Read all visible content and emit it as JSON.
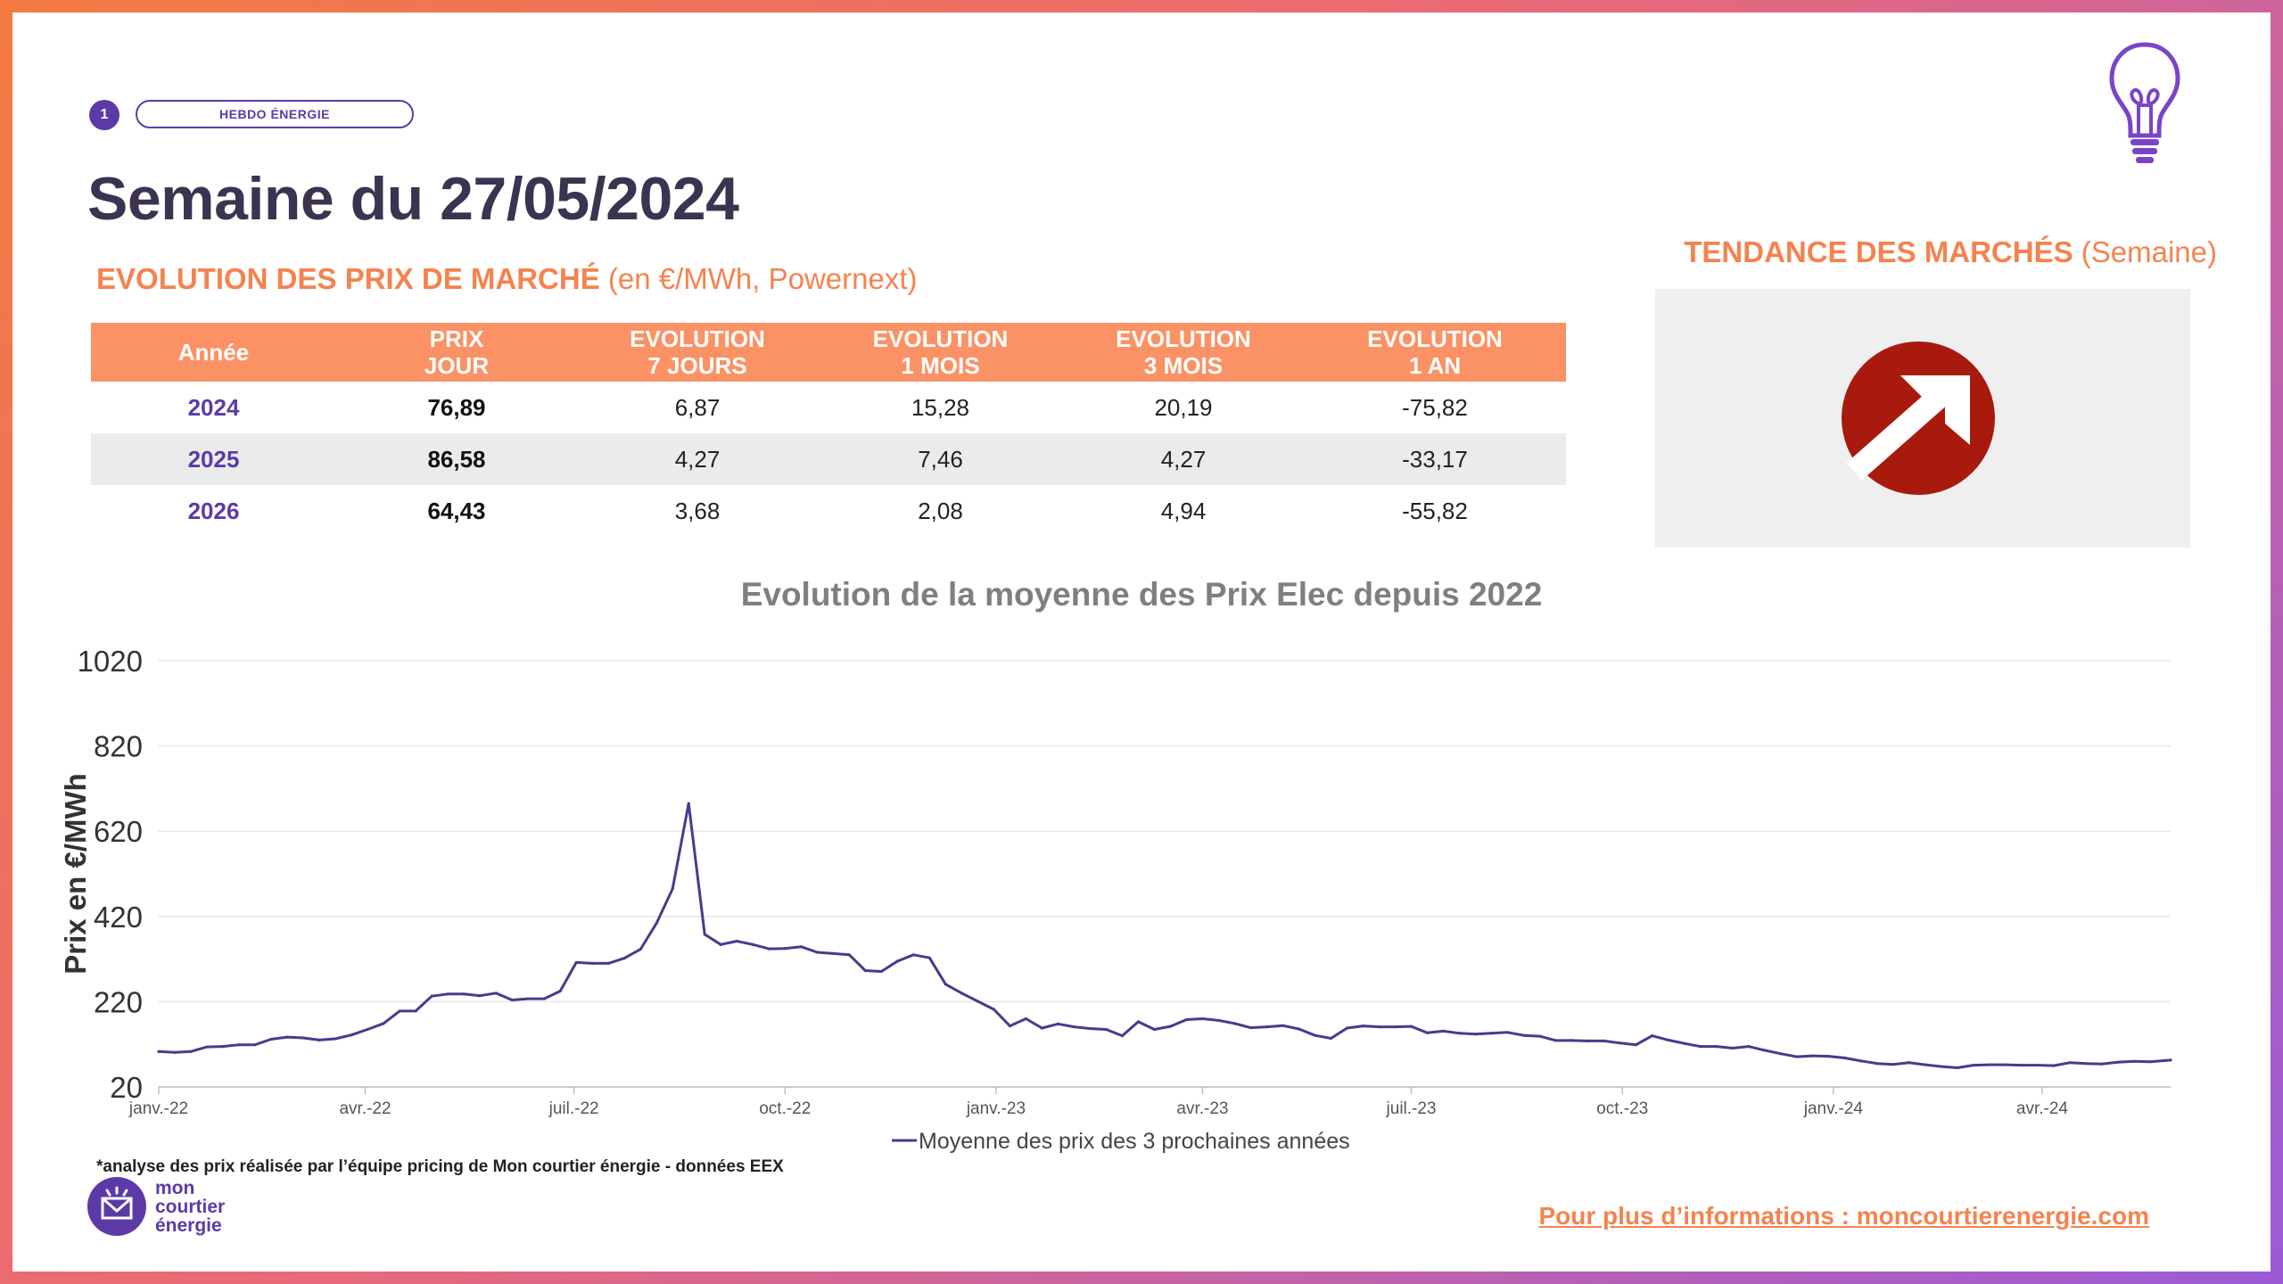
{
  "header": {
    "page_number": "1",
    "pill_label": "HEBDO ÉNERGIE",
    "title": "Semaine du 27/05/2024",
    "subtitle_bold": "EVOLUTION DES PRIX DE MARCHÉ",
    "subtitle_rest": " (en €/MWh, Powernext)"
  },
  "trend": {
    "title_bold": "TENDANCE DES MARCHÉS",
    "title_rest": " (Semaine)",
    "direction": "up-arrow-icon",
    "color": "#a81a0e"
  },
  "table": {
    "headers": [
      [
        "Année"
      ],
      [
        "PRIX",
        "JOUR"
      ],
      [
        "EVOLUTION",
        "7 JOURS"
      ],
      [
        "EVOLUTION",
        "1 MOIS"
      ],
      [
        "EVOLUTION",
        "3 MOIS"
      ],
      [
        "EVOLUTION",
        "1 AN"
      ]
    ],
    "rows": [
      [
        "2024",
        "76,89",
        "6,87",
        "15,28",
        "20,19",
        "-75,82"
      ],
      [
        "2025",
        "86,58",
        "4,27",
        "7,46",
        "4,27",
        "-33,17"
      ],
      [
        "2026",
        "64,43",
        "3,68",
        "2,08",
        "4,94",
        "-55,82"
      ]
    ]
  },
  "chart_data": {
    "type": "line",
    "title": "Evolution de la moyenne des Prix Elec depuis 2022",
    "ylabel": "Prix en €/MWh",
    "ylim": [
      20,
      1020
    ],
    "yticks": [
      20,
      220,
      420,
      620,
      820,
      1020
    ],
    "xlim": [
      "2022-01-01",
      "2024-05-27"
    ],
    "xticks": [
      {
        "date": "2022-01-01",
        "label": "janv.-22"
      },
      {
        "date": "2022-04-01",
        "label": "avr.-22"
      },
      {
        "date": "2022-07-01",
        "label": "juil.-22"
      },
      {
        "date": "2022-10-01",
        "label": "oct.-22"
      },
      {
        "date": "2023-01-01",
        "label": "janv.-23"
      },
      {
        "date": "2023-04-01",
        "label": "avr.-23"
      },
      {
        "date": "2023-07-01",
        "label": "juil.-23"
      },
      {
        "date": "2023-10-01",
        "label": "oct.-23"
      },
      {
        "date": "2024-01-01",
        "label": "janv.-24"
      },
      {
        "date": "2024-04-01",
        "label": "avr.-24"
      }
    ],
    "grid": true,
    "legend": "bottom",
    "series": [
      {
        "name": "Moyenne des prix des 3 prochaines années",
        "color": "#4b3a8c",
        "x": [
          "2022-01-01",
          "2022-01-08",
          "2022-01-15",
          "2022-01-22",
          "2022-01-29",
          "2022-02-05",
          "2022-02-12",
          "2022-02-19",
          "2022-02-26",
          "2022-03-05",
          "2022-03-12",
          "2022-03-19",
          "2022-03-26",
          "2022-04-02",
          "2022-04-09",
          "2022-04-16",
          "2022-04-23",
          "2022-04-30",
          "2022-05-07",
          "2022-05-14",
          "2022-05-21",
          "2022-05-28",
          "2022-06-04",
          "2022-06-11",
          "2022-06-18",
          "2022-06-25",
          "2022-07-02",
          "2022-07-09",
          "2022-07-16",
          "2022-07-23",
          "2022-07-30",
          "2022-08-06",
          "2022-08-13",
          "2022-08-20",
          "2022-08-27",
          "2022-09-03",
          "2022-09-10",
          "2022-09-17",
          "2022-09-24",
          "2022-10-01",
          "2022-10-08",
          "2022-10-15",
          "2022-10-22",
          "2022-10-29",
          "2022-11-05",
          "2022-11-12",
          "2022-11-19",
          "2022-11-26",
          "2022-12-03",
          "2022-12-10",
          "2022-12-17",
          "2022-12-24",
          "2022-12-31",
          "2023-01-07",
          "2023-01-14",
          "2023-01-21",
          "2023-01-28",
          "2023-02-04",
          "2023-02-11",
          "2023-02-18",
          "2023-02-25",
          "2023-03-04",
          "2023-03-11",
          "2023-03-18",
          "2023-03-25",
          "2023-04-01",
          "2023-04-08",
          "2023-04-15",
          "2023-04-22",
          "2023-04-29",
          "2023-05-06",
          "2023-05-13",
          "2023-05-20",
          "2023-05-27",
          "2023-06-03",
          "2023-06-10",
          "2023-06-17",
          "2023-06-24",
          "2023-07-01",
          "2023-07-08",
          "2023-07-15",
          "2023-07-22",
          "2023-07-29",
          "2023-08-05",
          "2023-08-12",
          "2023-08-19",
          "2023-08-26",
          "2023-09-02",
          "2023-09-09",
          "2023-09-16",
          "2023-09-23",
          "2023-09-30",
          "2023-10-07",
          "2023-10-14",
          "2023-10-21",
          "2023-10-28",
          "2023-11-04",
          "2023-11-11",
          "2023-11-18",
          "2023-11-25",
          "2023-12-02",
          "2023-12-09",
          "2023-12-16",
          "2023-12-23",
          "2023-12-30",
          "2024-01-06",
          "2024-01-13",
          "2024-01-20",
          "2024-01-27",
          "2024-02-03",
          "2024-02-10",
          "2024-02-17",
          "2024-02-24",
          "2024-03-02",
          "2024-03-09",
          "2024-03-16",
          "2024-03-23",
          "2024-03-30",
          "2024-04-06",
          "2024-04-13",
          "2024-04-20",
          "2024-04-27",
          "2024-05-04",
          "2024-05-11",
          "2024-05-18",
          "2024-05-27"
        ],
        "values": [
          103,
          101,
          103,
          114,
          115,
          119,
          119,
          132,
          137,
          135,
          130,
          133,
          142,
          155,
          169,
          198,
          198,
          233,
          238,
          238,
          234,
          240,
          224,
          227,
          227,
          245,
          312,
          310,
          310,
          322,
          343,
          404,
          485,
          685,
          378,
          354,
          362,
          354,
          344,
          345,
          349,
          336,
          333,
          330,
          293,
          291,
          315,
          330,
          323,
          261,
          240,
          221,
          202,
          163,
          180,
          158,
          168,
          161,
          157,
          155,
          140,
          173,
          155,
          162,
          178,
          180,
          176,
          169,
          159,
          161,
          164,
          156,
          141,
          134,
          158,
          163,
          161,
          161,
          162,
          147,
          151,
          146,
          144,
          146,
          148,
          141,
          139,
          129,
          129,
          128,
          128,
          123,
          119,
          140,
          130,
          122,
          115,
          115,
          111,
          115,
          106,
          98,
          91,
          93,
          92,
          88,
          81,
          75,
          73,
          77,
          72,
          68,
          65,
          71,
          72,
          72,
          71,
          71,
          70,
          77,
          75,
          74,
          78,
          80,
          79,
          83
        ]
      }
    ]
  },
  "footer": {
    "footnote": "*analyse des prix réalisée par l’équipe pricing de Mon courtier énergie -  données EEX",
    "logo_line1": "mon",
    "logo_line2": "courtier",
    "logo_line3": "énergie",
    "more_info": "Pour plus d’informations : moncourtierenergie.com"
  }
}
